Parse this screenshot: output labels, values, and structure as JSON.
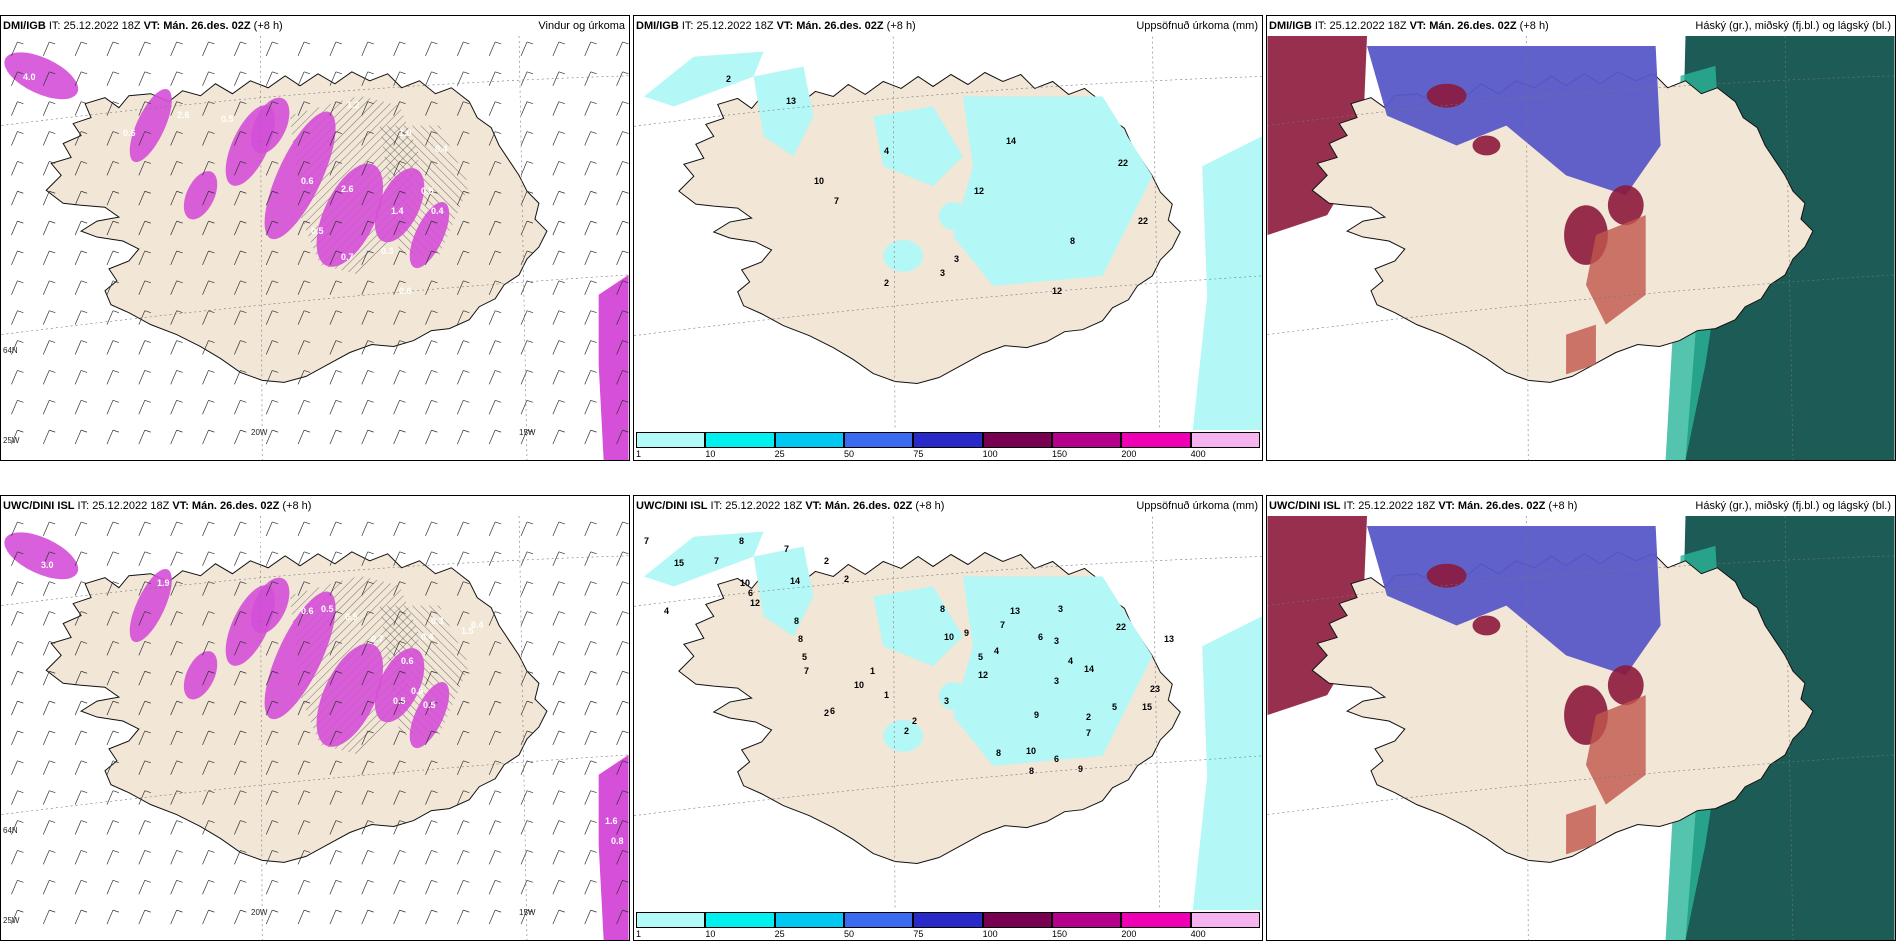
{
  "panels": [
    {
      "id": "p1",
      "source": "DMI/IGB",
      "it": " IT: 25.12.2022 18Z ",
      "vt": "VT: Mán. 26.des. 02Z",
      "lead": " (+8 h)",
      "title": "Vindur og úrkoma",
      "type": "wind"
    },
    {
      "id": "p2",
      "source": "DMI/IGB",
      "it": " IT: 25.12.2022 18Z ",
      "vt": "VT: Mán. 26.des. 02Z",
      "lead": " (+8 h)",
      "title": "Uppsöfnuð úrkoma (mm)",
      "type": "precip"
    },
    {
      "id": "p3",
      "source": "DMI/IGB",
      "it": " IT: 25.12.2022 18Z ",
      "vt": "VT: Mán. 26.des. 02Z",
      "lead": " (+8 h)",
      "title": "Háský (gr.), miðský (fj.bl.) og lágský (bl.)",
      "type": "cloud"
    },
    {
      "id": "p4",
      "source": "UWC/DINI ISL",
      "it": " IT: 25.12.2022 18Z ",
      "vt": "VT: Mán. 26.des. 02Z",
      "lead": " (+8 h)",
      "title": "",
      "type": "wind"
    },
    {
      "id": "p5",
      "source": "UWC/DINI ISL",
      "it": " IT: 25.12.2022 18Z ",
      "vt": "VT: Mán. 26.des. 02Z",
      "lead": " (+8 h)",
      "title": "Uppsöfnuð úrkoma (mm)",
      "type": "precip"
    },
    {
      "id": "p6",
      "source": "UWC/DINI ISL",
      "it": " IT: 25.12.2022 18Z ",
      "vt": "VT: Mán. 26.des. 02Z",
      "lead": " (+8 h)",
      "title": "Háský (gr.), miðský (fj.bl.) og lágský (bl.)",
      "type": "cloud"
    }
  ],
  "grid_labels": {
    "w20": "20W",
    "w15": "15W",
    "n66": "66N",
    "n64": "64N",
    "w25": "25W"
  },
  "colorbar": {
    "ticks": [
      "1",
      "10",
      "25",
      "50",
      "75",
      "100",
      "150",
      "200",
      "400"
    ],
    "colors": [
      "#b3fbfb",
      "#00f0f0",
      "#00c8f0",
      "#3a6af0",
      "#2a2ac8",
      "#780050",
      "#b4008c",
      "#f000b4",
      "#f5b4f0"
    ]
  },
  "precip_labels_top": [
    "2",
    "13",
    "4",
    "10",
    "7",
    "12",
    "14",
    "22",
    "22",
    "8",
    "12",
    "3",
    "3",
    "2"
  ],
  "precip_labels_bottom": [
    "7",
    "15",
    "7",
    "8",
    "7",
    "2",
    "2",
    "4",
    "10",
    "12",
    "6",
    "14",
    "8",
    "8",
    "5",
    "7",
    "10",
    "1",
    "1",
    "6",
    "2",
    "8",
    "13",
    "3",
    "6",
    "7",
    "4",
    "22",
    "14",
    "13",
    "23",
    "15",
    "3",
    "3",
    "2",
    "5",
    "9",
    "7",
    "9",
    "6",
    "8",
    "10",
    "9",
    "12",
    "2",
    "2",
    "3",
    "10",
    "4",
    "5",
    "8"
  ],
  "wind_labels_top": [
    "4.0",
    "2.6",
    "0.6",
    "1.2",
    "0.5",
    "1.0",
    "0.4",
    "0.5",
    "0.6",
    "2.6",
    "1.4",
    "0.5",
    "0.3",
    "0.4",
    "0.7",
    "0.6"
  ],
  "wind_labels_bottom": [
    "0.3",
    "0.3",
    "1.9",
    "3.0",
    "1.9",
    "0.6",
    "0.5",
    "0.4",
    "0.5",
    "0.7",
    "0.6",
    "0.4",
    "0.3",
    "0.5",
    "0.6",
    "0.5",
    "1.5",
    "1.9",
    "1.6",
    "0.8"
  ],
  "colors": {
    "land": "#f2e6d6",
    "coast": "#111111",
    "sea_precip": "#b3f7f7",
    "sea": "#ffffff",
    "wind_precip": "#d54fd8",
    "cloud_high": "#1d5c56",
    "cloud_mid": "#5858c8",
    "cloud_low": "#8c1a3c",
    "cloud_teal": "#2bb59a"
  }
}
